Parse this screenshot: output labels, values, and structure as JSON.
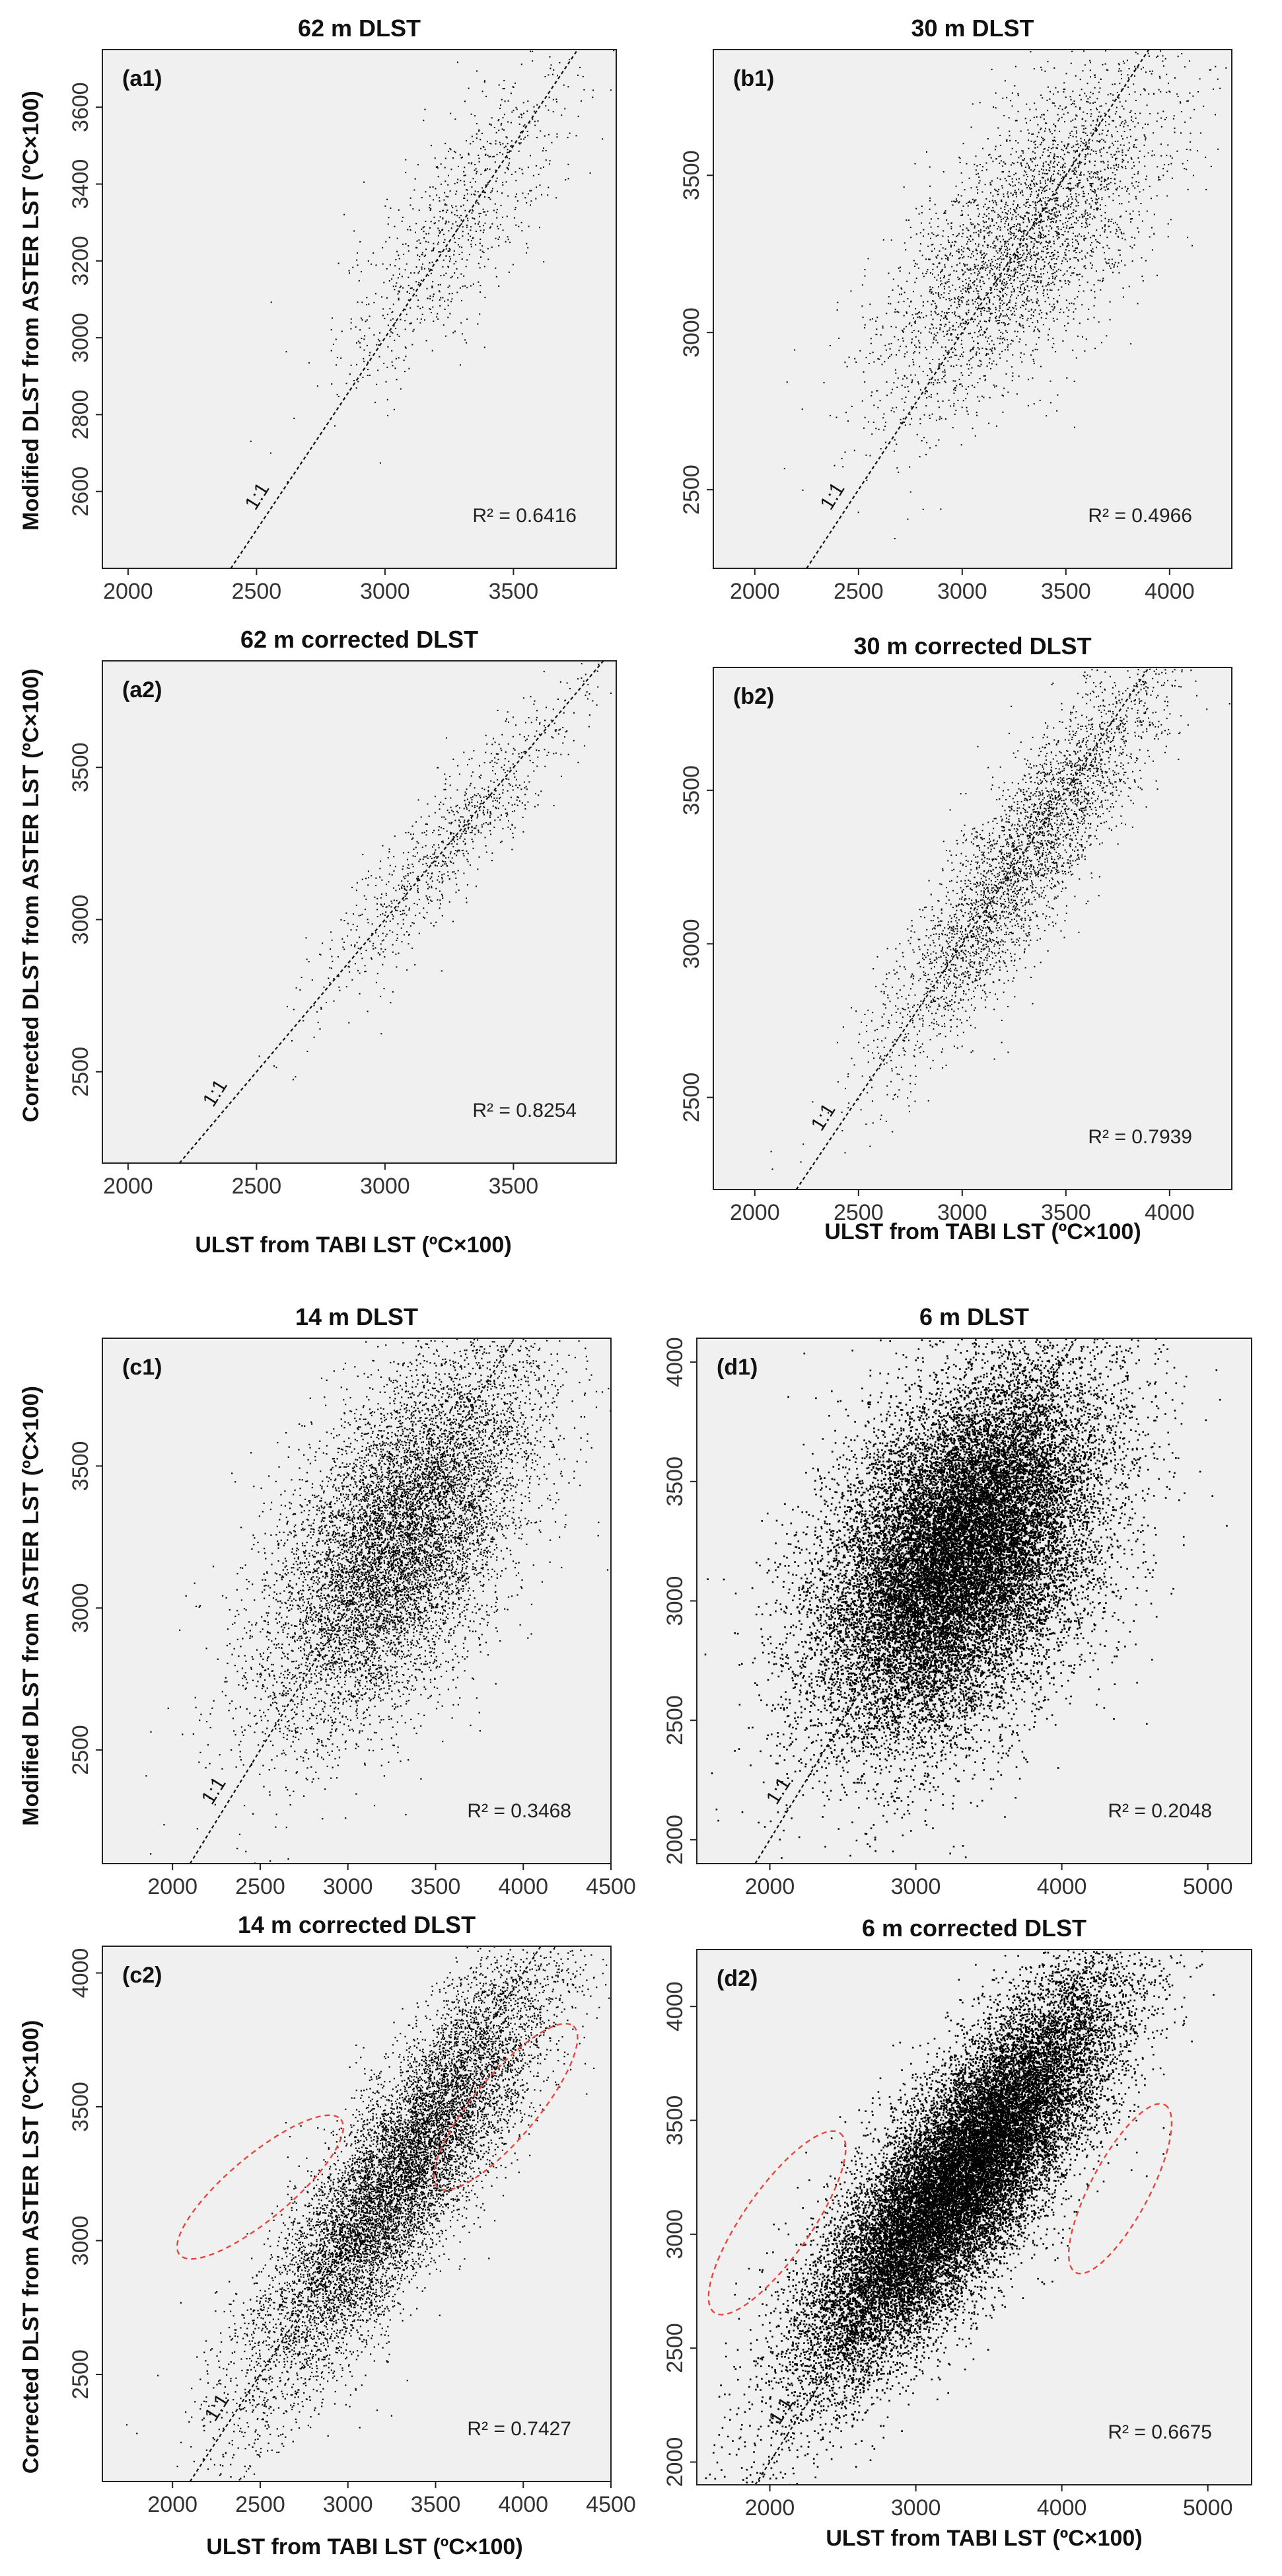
{
  "chart_data": [
    {
      "type": "scatter",
      "panel": "(a1)",
      "title": "62 m DLST",
      "xlim": [
        1900,
        3900
      ],
      "ylim": [
        2400,
        3750
      ],
      "xticks": [
        2000,
        2500,
        3000,
        3500
      ],
      "yticks": [
        2600,
        2800,
        3000,
        3200,
        3400,
        3600
      ],
      "r2_label": "R² = 0.6416",
      "one_to_one_label": "1:1",
      "scatter": {
        "n": 900,
        "cx": 3280,
        "cy": 3300,
        "sx": 230,
        "sy": 220,
        "rho": 0.8,
        "density": "sparse"
      },
      "ellipses": []
    },
    {
      "type": "scatter",
      "panel": "(b1)",
      "title": "30 m DLST",
      "xlim": [
        1800,
        4300
      ],
      "ylim": [
        2250,
        3900
      ],
      "xticks": [
        2000,
        2500,
        3000,
        3500,
        4000
      ],
      "yticks": [
        2500,
        3000,
        3500
      ],
      "r2_label": "R² = 0.4966",
      "one_to_one_label": "1:1",
      "scatter": {
        "n": 3500,
        "cx": 3300,
        "cy": 3300,
        "sx": 350,
        "sy": 280,
        "rho": 0.7,
        "density": "medium"
      },
      "ellipses": []
    },
    {
      "type": "scatter",
      "panel": "(a2)",
      "title": "62 m corrected DLST",
      "xlim": [
        1900,
        3900
      ],
      "ylim": [
        2200,
        3850
      ],
      "xticks": [
        2000,
        2500,
        3000,
        3500
      ],
      "yticks": [
        2500,
        3000,
        3500
      ],
      "r2_label": "R² = 0.8254",
      "one_to_one_label": "1:1",
      "scatter": {
        "n": 900,
        "cx": 3250,
        "cy": 3250,
        "sx": 260,
        "sy": 270,
        "rho": 0.91,
        "density": "sparse"
      },
      "ellipses": []
    },
    {
      "type": "scatter",
      "panel": "(b2)",
      "title": "30 m corrected DLST",
      "xlim": [
        1800,
        4300
      ],
      "ylim": [
        2200,
        3900
      ],
      "xticks": [
        2000,
        2500,
        3000,
        3500,
        4000
      ],
      "yticks": [
        2500,
        3000,
        3500
      ],
      "r2_label": "R² = 0.7939",
      "one_to_one_label": "1:1",
      "scatter": {
        "n": 3500,
        "cx": 3300,
        "cy": 3280,
        "sx": 340,
        "sy": 330,
        "rho": 0.89,
        "density": "medium"
      },
      "ellipses": []
    },
    {
      "type": "scatter",
      "panel": "(c1)",
      "title": "14 m DLST",
      "xlim": [
        1600,
        4500
      ],
      "ylim": [
        2100,
        3950
      ],
      "xticks": [
        2000,
        2500,
        3000,
        3500,
        4000,
        4500
      ],
      "yticks": [
        2500,
        3000,
        3500
      ],
      "r2_label": "R² = 0.3468",
      "one_to_one_label": "1:1",
      "scatter": {
        "n": 9000,
        "cx": 3300,
        "cy": 3250,
        "sx": 380,
        "sy": 330,
        "rho": 0.59,
        "density": "dense"
      },
      "ellipses": []
    },
    {
      "type": "scatter",
      "panel": "(d1)",
      "title": "6 m DLST",
      "xlim": [
        1500,
        5300
      ],
      "ylim": [
        1900,
        4100
      ],
      "xticks": [
        2000,
        3000,
        4000,
        5000
      ],
      "yticks": [
        2000,
        2500,
        3000,
        3500,
        4000
      ],
      "r2_label": "R² = 0.2048",
      "one_to_one_label": "1:1",
      "scatter": {
        "n": 22000,
        "cx": 3300,
        "cy": 3200,
        "sx": 480,
        "sy": 380,
        "rho": 0.45,
        "density": "very dense"
      },
      "ellipses": []
    },
    {
      "type": "scatter",
      "panel": "(c2)",
      "title": "14 m corrected DLST",
      "xlim": [
        1600,
        4500
      ],
      "ylim": [
        2100,
        4100
      ],
      "xticks": [
        2000,
        2500,
        3000,
        3500,
        4000,
        4500
      ],
      "yticks": [
        2500,
        3000,
        3500,
        4000
      ],
      "r2_label": "R² = 0.7427",
      "one_to_one_label": "1:1",
      "scatter": {
        "n": 10000,
        "cx": 3300,
        "cy": 3250,
        "sx": 420,
        "sy": 400,
        "rho": 0.86,
        "density": "dense"
      },
      "ellipses": [
        {
          "cx": 2500,
          "cy": 3200,
          "rx": 600,
          "ry": 180,
          "angle_deg": 40
        },
        {
          "cx": 3900,
          "cy": 3500,
          "rx": 600,
          "ry": 180,
          "angle_deg": 50
        }
      ]
    },
    {
      "type": "scatter",
      "panel": "(d2)",
      "title": "6 m corrected DLST",
      "xlim": [
        1500,
        5300
      ],
      "ylim": [
        1900,
        4250
      ],
      "xticks": [
        2000,
        3000,
        4000,
        5000
      ],
      "yticks": [
        2000,
        2500,
        3000,
        3500,
        4000
      ],
      "r2_label": "R² = 0.6675",
      "one_to_one_label": "1:1",
      "scatter": {
        "n": 24000,
        "cx": 3300,
        "cy": 3250,
        "sx": 520,
        "sy": 430,
        "rho": 0.82,
        "density": "very dense"
      },
      "ellipses": [
        {
          "cx": 2050,
          "cy": 3050,
          "rx": 750,
          "ry": 230,
          "angle_deg": 55
        },
        {
          "cx": 4400,
          "cy": 3200,
          "rx": 650,
          "ry": 200,
          "angle_deg": 62
        }
      ]
    }
  ],
  "labels": {
    "y_modified": "Modified DLST from ASTER LST (ºC×100)",
    "y_corrected": "Corrected DLST from ASTER LST (ºC×100)",
    "x_ulst": "ULST from TABI LST (ºC×100)"
  },
  "colors": {
    "panel_bg": "#f0f0f0",
    "point": "#000000",
    "ellipse": "#e8463c",
    "frame": "#222222"
  }
}
